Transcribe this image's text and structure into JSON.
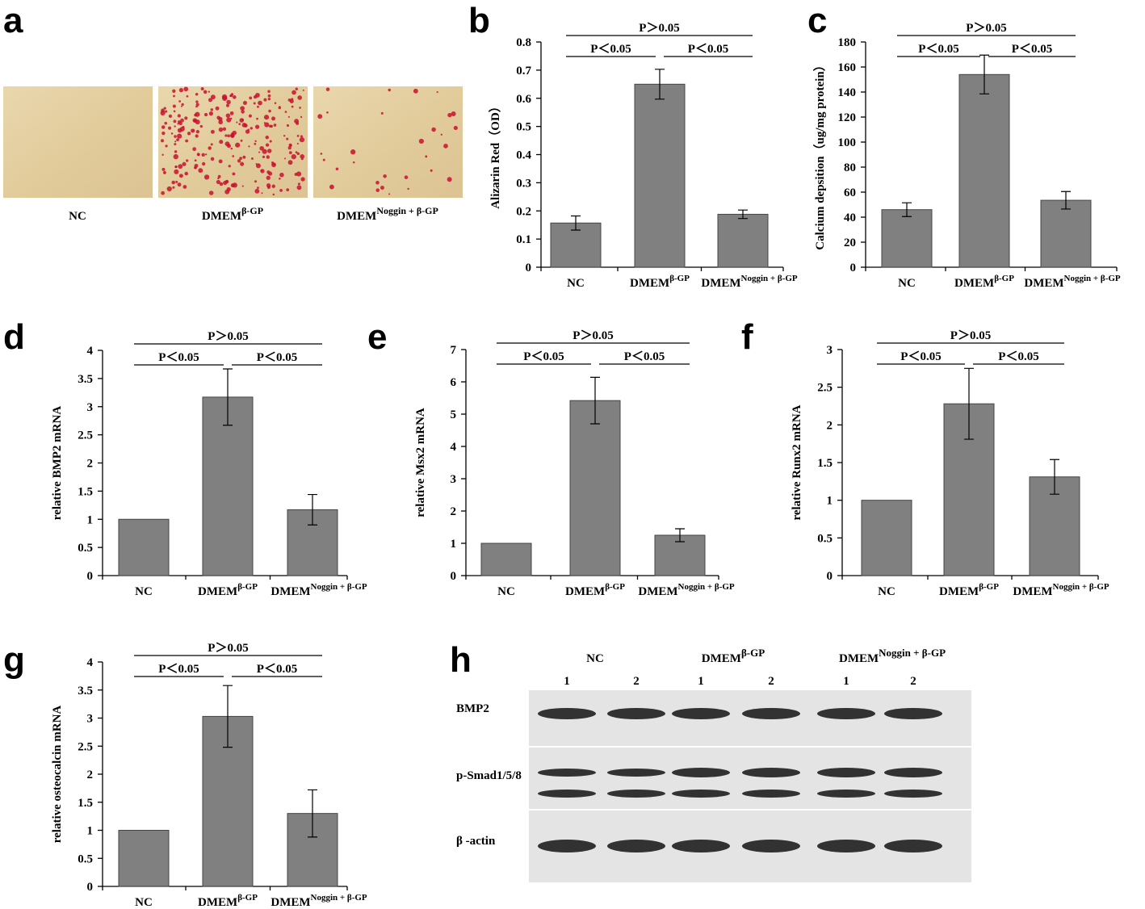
{
  "panel_a": {
    "letter": "a",
    "labels": [
      "NC",
      "DMEM",
      "DMEM"
    ],
    "label_superscripts": [
      null,
      "β-GP",
      "Noggin + β-GP"
    ]
  },
  "chart_data": [
    {
      "type": "bar",
      "panel": "b",
      "ylabel": "Alizarin Red（OD）",
      "categories": [
        "NC",
        "DMEM",
        "DMEM"
      ],
      "category_superscripts": [
        null,
        "β-GP",
        "Noggin + β-GP"
      ],
      "values": [
        0.157,
        0.65,
        0.188
      ],
      "errors": [
        0.025,
        0.053,
        0.015
      ],
      "color": "#808080",
      "ylim": [
        0,
        0.8
      ],
      "yticks": [
        0,
        0.1,
        0.2,
        0.3,
        0.4,
        0.5,
        0.6,
        0.7,
        0.8
      ],
      "annotations": [
        "P＜0.05",
        "P＜0.05",
        "P＞0.05"
      ]
    },
    {
      "type": "bar",
      "panel": "c",
      "ylabel": "Calcium depsition（ug/mg protein）",
      "categories": [
        "NC",
        "DMEM",
        "DMEM"
      ],
      "category_superscripts": [
        null,
        "β-GP",
        "Noggin + β-GP"
      ],
      "values": [
        46,
        154,
        53.5
      ],
      "errors": [
        5.5,
        15.5,
        7
      ],
      "color": "#808080",
      "ylim": [
        0,
        180
      ],
      "yticks": [
        0,
        20,
        40,
        60,
        80,
        100,
        120,
        140,
        160,
        180
      ],
      "annotations": [
        "P＜0.05",
        "P＜0.05",
        "P＞0.05"
      ]
    },
    {
      "type": "bar",
      "panel": "d",
      "ylabel": "relative BMP2 mRNA",
      "categories": [
        "NC",
        "DMEM",
        "DMEM"
      ],
      "category_superscripts": [
        null,
        "β-GP",
        "Noggin + β-GP"
      ],
      "values": [
        1,
        3.17,
        1.17
      ],
      "errors": [
        null,
        0.5,
        0.27
      ],
      "color": "#808080",
      "ylim": [
        0,
        4
      ],
      "yticks": [
        0,
        0.5,
        1,
        1.5,
        2,
        2.5,
        3,
        3.5,
        4
      ],
      "annotations": [
        "P＜0.05",
        "P＜0.05",
        "P＞0.05"
      ]
    },
    {
      "type": "bar",
      "panel": "e",
      "ylabel": "relative Msx2 mRNA",
      "categories": [
        "NC",
        "DMEM",
        "DMEM"
      ],
      "category_superscripts": [
        null,
        "β-GP",
        "Noggin + β-GP"
      ],
      "values": [
        1,
        5.42,
        1.25
      ],
      "errors": [
        null,
        0.72,
        0.2
      ],
      "color": "#808080",
      "ylim": [
        0,
        7
      ],
      "yticks": [
        0,
        1,
        2,
        3,
        4,
        5,
        6,
        7
      ],
      "annotations": [
        "P＜0.05",
        "P＜0.05",
        "P＞0.05"
      ]
    },
    {
      "type": "bar",
      "panel": "f",
      "ylabel": "relative Runx2 mRNA",
      "categories": [
        "NC",
        "DMEM",
        "DMEM"
      ],
      "category_superscripts": [
        null,
        "β-GP",
        "Noggin + β-GP"
      ],
      "values": [
        1,
        2.28,
        1.31
      ],
      "errors": [
        null,
        0.47,
        0.23
      ],
      "color": "#808080",
      "ylim": [
        0,
        3
      ],
      "yticks": [
        0,
        0.5,
        1,
        1.5,
        2,
        2.5,
        3
      ],
      "annotations": [
        "P＜0.05",
        "P＜0.05",
        "P＞0.05"
      ]
    },
    {
      "type": "bar",
      "panel": "g",
      "ylabel": "relative osteocalcin mRNA",
      "categories": [
        "NC",
        "DMEM",
        "DMEM"
      ],
      "category_superscripts": [
        null,
        "β-GP",
        "Noggin + β-GP"
      ],
      "values": [
        1,
        3.03,
        1.3
      ],
      "errors": [
        null,
        0.55,
        0.42
      ],
      "color": "#808080",
      "ylim": [
        0,
        4
      ],
      "yticks": [
        0,
        0.5,
        1,
        1.5,
        2,
        2.5,
        3,
        3.5,
        4
      ],
      "annotations": [
        "P＜0.05",
        "P＜0.05",
        "P＞0.05"
      ]
    }
  ],
  "panel_h": {
    "letter": "h",
    "groups": [
      "NC",
      "DMEM",
      "DMEM"
    ],
    "group_superscripts": [
      null,
      "β-GP",
      "Noggin + β-GP"
    ],
    "lanes": [
      "1",
      "2",
      "1",
      "2",
      "1",
      "2"
    ],
    "rows": [
      "BMP2",
      "p-Smad1/5/8",
      "β -actin"
    ]
  }
}
